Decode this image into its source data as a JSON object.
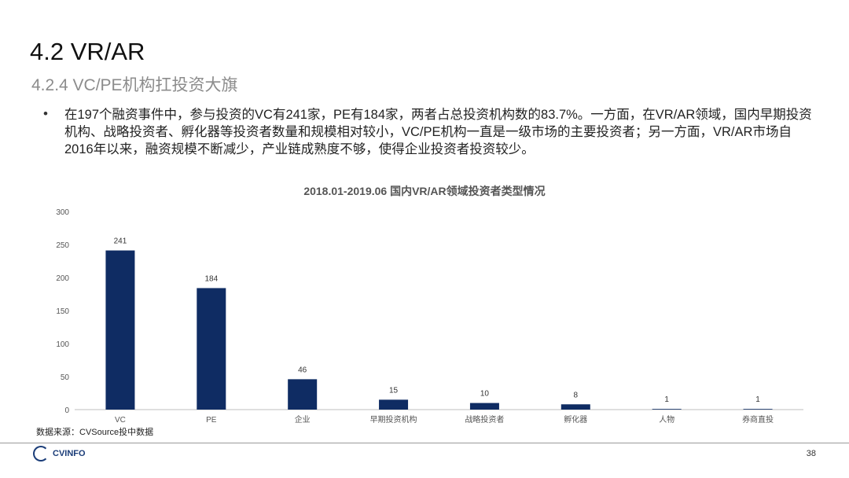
{
  "slide": {
    "title": "4.2 VR/AR",
    "subtitle": "4.2.4 VC/PE机构扛投资大旗",
    "bullet": "在197个融资事件中，参与投资的VC有241家，PE有184家，两者占总投资机构数的83.7%。一方面，在VR/AR领域，国内早期投资机构、战略投资者、孵化器等投资者数量和规模相对较小，VC/PE机构一直是一级市场的主要投资者；另一方面，VR/AR市场自2016年以来，融资规模不断减少，产业链成熟度不够，使得企业投资者投资较少。",
    "source": "数据来源：CVSource投中数据",
    "logo_text": "CVINFO",
    "page_number": "38"
  },
  "chart_data": {
    "type": "bar",
    "title": "2018.01-2019.06 国内VR/AR领域投资者类型情况",
    "categories": [
      "VC",
      "PE",
      "企业",
      "早期投资机构",
      "战略投资者",
      "孵化器",
      "人物",
      "券商直投"
    ],
    "values": [
      241,
      184,
      46,
      15,
      10,
      8,
      1,
      1
    ],
    "ylim": [
      0,
      300
    ],
    "yticks": [
      0,
      50,
      100,
      150,
      200,
      250,
      300
    ],
    "xlabel": "",
    "ylabel": "",
    "grid": false,
    "show_data_labels": true,
    "bar_color": "#0f2c63"
  }
}
